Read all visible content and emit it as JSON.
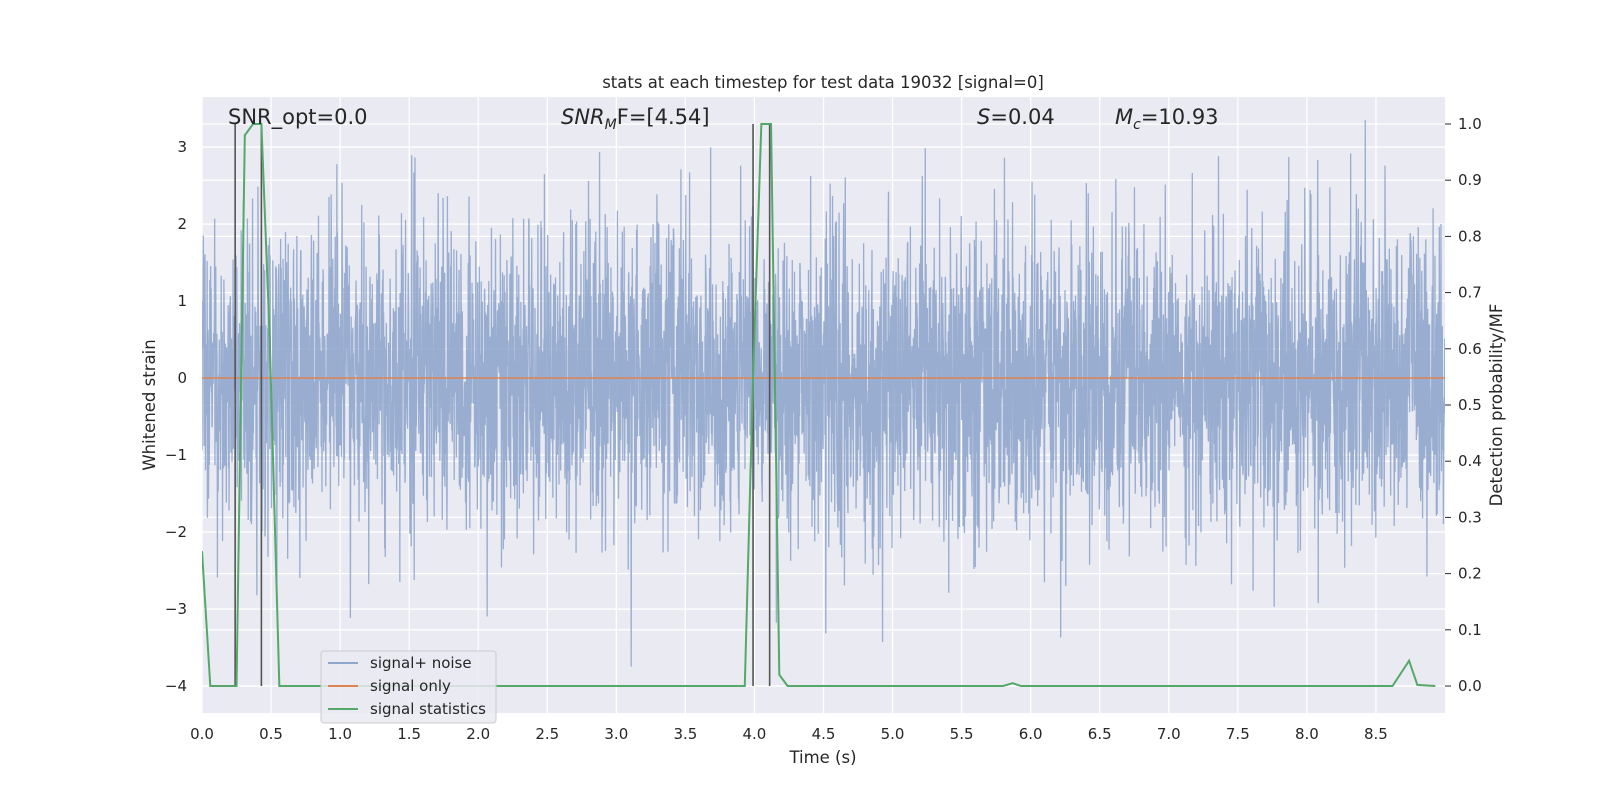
{
  "chart_data": {
    "type": "line",
    "title": "stats at each timestep for test data 19032 [signal=0]",
    "xlabel": "Time (s)",
    "ylabel": "Whitened strain",
    "y2label": "Detection probability/MF",
    "xlim": [
      0.0,
      9.0
    ],
    "ylim": [
      -4.35,
      3.65
    ],
    "y2lim": [
      -0.048,
      1.048
    ],
    "x_ticks": [
      "0.0",
      "0.5",
      "1.0",
      "1.5",
      "2.0",
      "2.5",
      "3.0",
      "3.5",
      "4.0",
      "4.5",
      "5.0",
      "5.5",
      "6.0",
      "6.5",
      "7.0",
      "7.5",
      "8.0",
      "8.5"
    ],
    "y_ticks": [
      "3",
      "2",
      "1",
      "0",
      "−1",
      "−2",
      "−3",
      "−4"
    ],
    "y2_ticks": [
      "1.0",
      "0.9",
      "0.8",
      "0.7",
      "0.6",
      "0.5",
      "0.4",
      "0.3",
      "0.2",
      "0.1",
      "0.0"
    ],
    "grid": true,
    "legend_position": "lower left",
    "annotations": {
      "snr_opt": "SNR_opt=0.0",
      "snr_mf_base": "SNR",
      "snr_mf_sub": "M",
      "snr_mf_rest": "F=[4.54]",
      "s_sym": "S",
      "s_rest": "=0.04",
      "mc_sym": "M",
      "mc_sub": "c",
      "mc_rest": "=10.93"
    },
    "series": [
      {
        "name": "signal+ noise",
        "color": "#8fa6cc",
        "axis": "left",
        "description_amplitude_sigma": 1.0,
        "x_range": [
          0.0,
          9.0
        ]
      },
      {
        "name": "signal only",
        "color": "#dd8452",
        "axis": "left",
        "x": [
          0.0,
          9.0
        ],
        "y": [
          0.0,
          0.0
        ]
      },
      {
        "name": "signal statistics",
        "color": "#55a868",
        "axis": "right",
        "x": [
          0.0,
          0.06,
          0.25,
          0.31,
          0.37,
          0.43,
          0.49,
          0.56,
          0.62,
          1.0,
          2.0,
          3.0,
          3.93,
          3.99,
          4.05,
          4.12,
          4.18,
          4.24,
          4.3,
          5.0,
          5.8,
          5.87,
          5.93,
          6.1,
          7.0,
          8.0,
          8.62,
          8.74,
          8.8,
          8.93
        ],
        "y": [
          0.24,
          0.0,
          0.0,
          0.98,
          1.0,
          1.0,
          0.62,
          0.0,
          0.0,
          0.0,
          0.0,
          0.0,
          0.0,
          0.55,
          1.0,
          1.0,
          0.02,
          0.0,
          0.0,
          0.0,
          0.0,
          0.005,
          0.0,
          0.0,
          0.0,
          0.0,
          0.0,
          0.045,
          0.002,
          0.0
        ]
      }
    ],
    "vertical_markers": [
      {
        "x": 0.24,
        "y2": [
          0.0,
          1.0
        ]
      },
      {
        "x": 0.43,
        "y2": [
          0.0,
          1.0
        ]
      },
      {
        "x": 3.99,
        "y2": [
          0.0,
          1.0
        ]
      },
      {
        "x": 4.11,
        "y2": [
          0.0,
          1.0
        ]
      }
    ],
    "colors": {
      "plot_bg": "#eaeaf2",
      "grid": "#ffffff",
      "marker": "#555555"
    }
  }
}
